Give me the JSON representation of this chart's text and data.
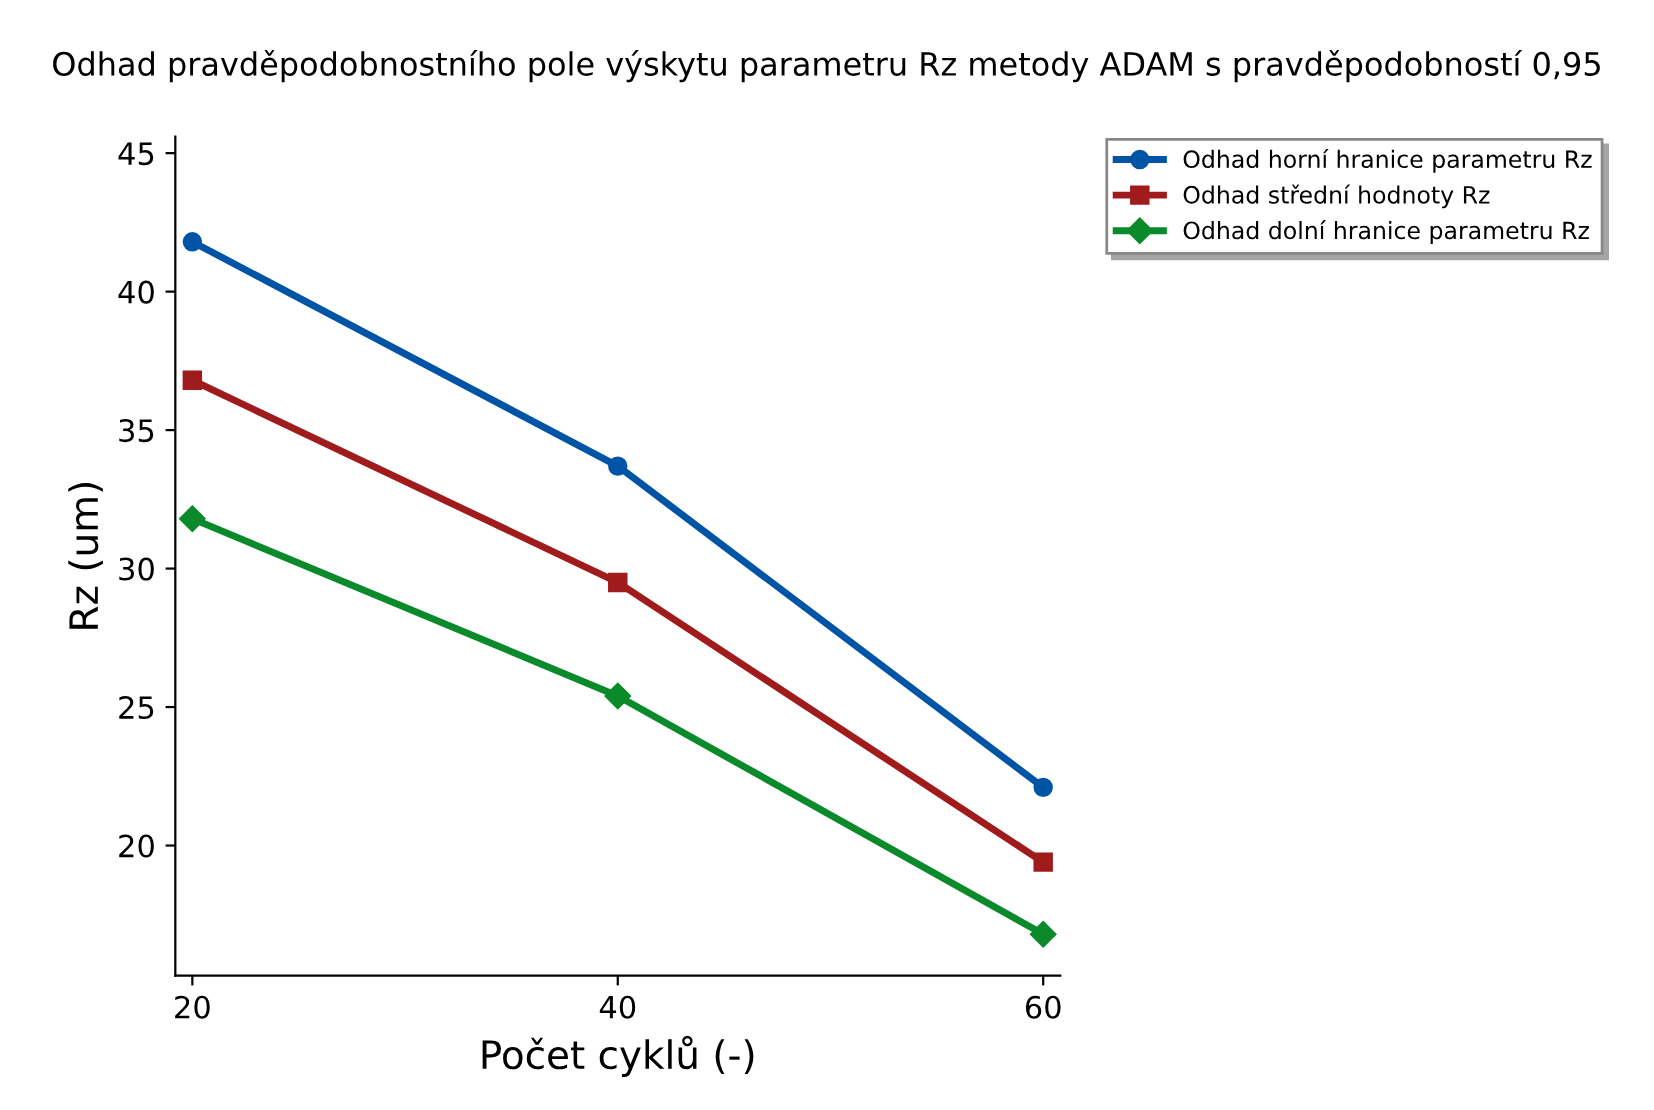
{
  "chart_data": {
    "type": "line",
    "title": "Odhad pravděpodobnostního pole výskytu parametru Rz metody ADAM s pravděpodobností 0,95",
    "xlabel": "Počet cyklů (-)",
    "ylabel": "Rz (um)",
    "x": [
      20,
      40,
      60
    ],
    "series": [
      {
        "name": "Odhad horní hranice parametru Rz",
        "color": "#0054a6",
        "marker": "circle",
        "values": [
          41.8,
          33.7,
          22.1
        ]
      },
      {
        "name": "Odhad střední hodnoty Rz",
        "color": "#a01c1c",
        "marker": "square",
        "values": [
          36.8,
          29.5,
          19.4
        ]
      },
      {
        "name": "Odhad dolní hranice parametru Rz",
        "color": "#0a8a2a",
        "marker": "diamond",
        "values": [
          31.8,
          25.4,
          16.8
        ]
      }
    ],
    "xlim": [
      19.2,
      60.8
    ],
    "ylim": [
      15.3,
      45.6
    ],
    "xticks": [
      20,
      40,
      60
    ],
    "yticks": [
      20,
      25,
      30,
      35,
      40,
      45
    ],
    "grid": false,
    "legend": "top right",
    "line_style": "solid"
  }
}
